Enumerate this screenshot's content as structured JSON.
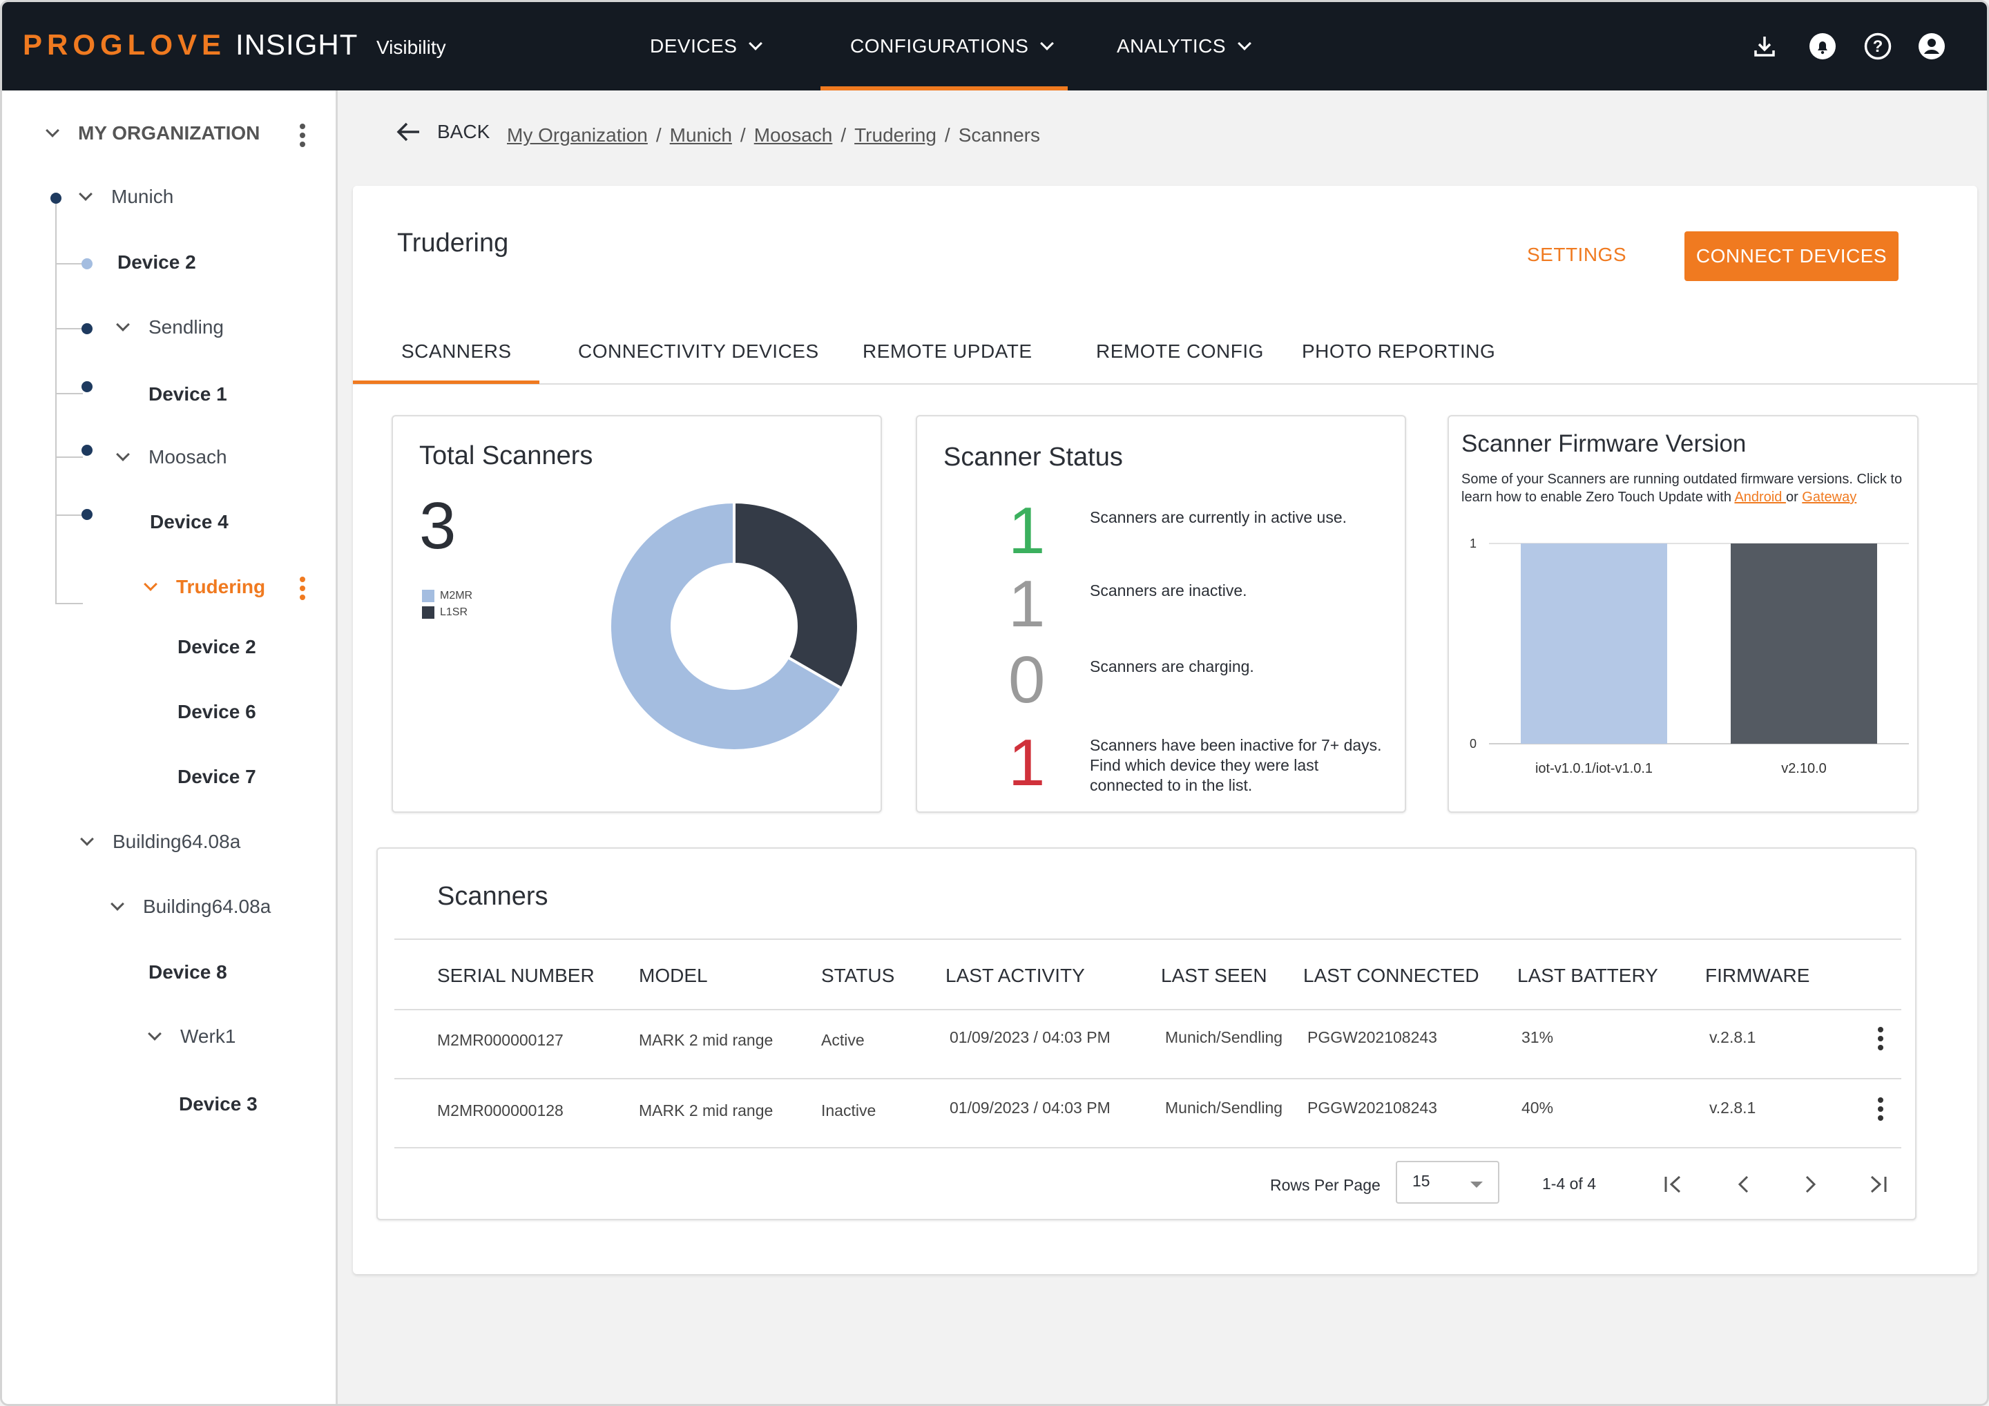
{
  "header": {
    "brand": "PROGLOVE",
    "brand_suffix": "INSIGHT",
    "subtitle": "Visibility",
    "nav": [
      {
        "label": "DEVICES"
      },
      {
        "label": "CONFIGURATIONS"
      },
      {
        "label": "ANALYTICS"
      }
    ],
    "icons": [
      "download-icon",
      "bell-icon",
      "help-icon",
      "account-icon"
    ]
  },
  "sidebar": {
    "root": "MY ORGANIZATION",
    "nodes": [
      {
        "label": "Munich"
      },
      {
        "label": "Device 2"
      },
      {
        "label": "Sendling"
      },
      {
        "label": "Device 1"
      },
      {
        "label": "Moosach"
      },
      {
        "label": "Device 4"
      },
      {
        "label": "Trudering"
      },
      {
        "label": "Device 2"
      },
      {
        "label": "Device 6"
      },
      {
        "label": "Device 7"
      },
      {
        "label": "Building64.08a"
      },
      {
        "label": "Building64.08a"
      },
      {
        "label": "Device 8"
      },
      {
        "label": "Werk1"
      },
      {
        "label": "Device 3"
      }
    ]
  },
  "breadcrumb": {
    "back_label": "BACK",
    "items": [
      "My Organization",
      "Munich",
      "Moosach",
      "Trudering"
    ],
    "current": "Scanners"
  },
  "main": {
    "title": "Trudering",
    "settings_label": "SETTINGS",
    "connect_label": "CONNECT DEVICES",
    "tabs": [
      {
        "label": "SCANNERS"
      },
      {
        "label": "CONNECTIVITY DEVICES"
      },
      {
        "label": "REMOTE UPDATE"
      },
      {
        "label": "REMOTE CONFIG"
      },
      {
        "label": "PHOTO REPORTING"
      }
    ]
  },
  "total_scanners": {
    "title": "Total Scanners",
    "count": "3",
    "legend": [
      {
        "label": "M2MR",
        "color": "#a4bde0"
      },
      {
        "label": "L1SR",
        "color": "#343b47"
      }
    ]
  },
  "scanner_status": {
    "title": "Scanner Status",
    "rows": [
      {
        "value": "1",
        "color": "#3bb05e",
        "text": "Scanners are currently in active use."
      },
      {
        "value": "1",
        "color": "#9a9a9a",
        "text": "Scanners are inactive."
      },
      {
        "value": "0",
        "color": "#9a9a9a",
        "text": "Scanners are charging."
      },
      {
        "value": "1",
        "color": "#d0313b",
        "text": "Scanners have been inactive for 7+ days. Find which device they were last connected to in the list."
      }
    ]
  },
  "firmware": {
    "title": "Scanner Firmware Version",
    "desc_prefix": "Some of your Scanners are running outdated firmware versions. Click to learn how to enable Zero Touch Update with ",
    "link_android": "Android ",
    "desc_or": "or ",
    "link_gateway": "Gateway"
  },
  "chart_data": [
    {
      "type": "pie",
      "categories": [
        "M2MR",
        "L1SR"
      ],
      "values": [
        2,
        1
      ],
      "colors": [
        "#a4bde0",
        "#343b47"
      ],
      "donut": true
    },
    {
      "type": "bar",
      "categories": [
        "iot-v1.0.1/iot-v1.0.1",
        "v2.10.0"
      ],
      "values": [
        1,
        1
      ],
      "colors": [
        "#b4c8e6",
        "#545a62"
      ],
      "ylim": [
        0,
        1
      ],
      "yticks": [
        "0",
        "1"
      ]
    }
  ],
  "table": {
    "title": "Scanners",
    "columns": [
      "SERIAL NUMBER",
      "MODEL",
      "STATUS",
      "LAST ACTIVITY",
      "LAST SEEN",
      "LAST CONNECTED",
      "LAST BATTERY",
      "FIRMWARE"
    ],
    "rows": [
      [
        "M2MR000000127",
        "MARK 2 mid range",
        "Active",
        "01/09/2023 / 04:03 PM",
        "Munich/Sendling",
        "PGGW202108243",
        "31%",
        "v.2.8.1"
      ],
      [
        "M2MR000000128",
        "MARK 2 mid range",
        "Inactive",
        "01/09/2023 / 04:03 PM",
        "Munich/Sendling",
        "PGGW202108243",
        "40%",
        "v.2.8.1"
      ]
    ],
    "rows_per_page_label": "Rows Per Page",
    "rows_per_page": "15",
    "range": "1-4 of 4"
  }
}
